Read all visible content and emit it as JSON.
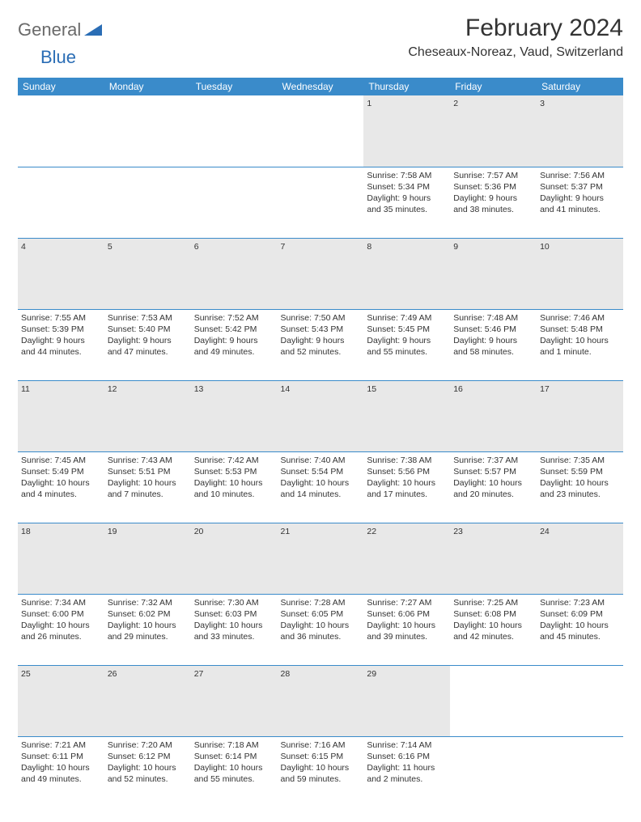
{
  "logo": {
    "text1": "General",
    "text2": "Blue"
  },
  "title": "February 2024",
  "location": "Cheseaux-Noreaz, Vaud, Switzerland",
  "colors": {
    "header_bg": "#3a8bca",
    "header_text": "#ffffff",
    "daynum_bg": "#e8e8e8",
    "border": "#3a8bca",
    "logo_gray": "#6a6a6a",
    "logo_blue": "#2a6db5",
    "text": "#333333",
    "background": "#ffffff"
  },
  "typography": {
    "title_fontsize": 30,
    "location_fontsize": 16,
    "header_fontsize": 12,
    "daynum_fontsize": 11,
    "cell_fontsize": 10.5,
    "font_family": "Arial"
  },
  "weekdays": [
    "Sunday",
    "Monday",
    "Tuesday",
    "Wednesday",
    "Thursday",
    "Friday",
    "Saturday"
  ],
  "weeks": [
    [
      null,
      null,
      null,
      null,
      {
        "day": "1",
        "sunrise": "Sunrise: 7:58 AM",
        "sunset": "Sunset: 5:34 PM",
        "daylight": "Daylight: 9 hours and 35 minutes."
      },
      {
        "day": "2",
        "sunrise": "Sunrise: 7:57 AM",
        "sunset": "Sunset: 5:36 PM",
        "daylight": "Daylight: 9 hours and 38 minutes."
      },
      {
        "day": "3",
        "sunrise": "Sunrise: 7:56 AM",
        "sunset": "Sunset: 5:37 PM",
        "daylight": "Daylight: 9 hours and 41 minutes."
      }
    ],
    [
      {
        "day": "4",
        "sunrise": "Sunrise: 7:55 AM",
        "sunset": "Sunset: 5:39 PM",
        "daylight": "Daylight: 9 hours and 44 minutes."
      },
      {
        "day": "5",
        "sunrise": "Sunrise: 7:53 AM",
        "sunset": "Sunset: 5:40 PM",
        "daylight": "Daylight: 9 hours and 47 minutes."
      },
      {
        "day": "6",
        "sunrise": "Sunrise: 7:52 AM",
        "sunset": "Sunset: 5:42 PM",
        "daylight": "Daylight: 9 hours and 49 minutes."
      },
      {
        "day": "7",
        "sunrise": "Sunrise: 7:50 AM",
        "sunset": "Sunset: 5:43 PM",
        "daylight": "Daylight: 9 hours and 52 minutes."
      },
      {
        "day": "8",
        "sunrise": "Sunrise: 7:49 AM",
        "sunset": "Sunset: 5:45 PM",
        "daylight": "Daylight: 9 hours and 55 minutes."
      },
      {
        "day": "9",
        "sunrise": "Sunrise: 7:48 AM",
        "sunset": "Sunset: 5:46 PM",
        "daylight": "Daylight: 9 hours and 58 minutes."
      },
      {
        "day": "10",
        "sunrise": "Sunrise: 7:46 AM",
        "sunset": "Sunset: 5:48 PM",
        "daylight": "Daylight: 10 hours and 1 minute."
      }
    ],
    [
      {
        "day": "11",
        "sunrise": "Sunrise: 7:45 AM",
        "sunset": "Sunset: 5:49 PM",
        "daylight": "Daylight: 10 hours and 4 minutes."
      },
      {
        "day": "12",
        "sunrise": "Sunrise: 7:43 AM",
        "sunset": "Sunset: 5:51 PM",
        "daylight": "Daylight: 10 hours and 7 minutes."
      },
      {
        "day": "13",
        "sunrise": "Sunrise: 7:42 AM",
        "sunset": "Sunset: 5:53 PM",
        "daylight": "Daylight: 10 hours and 10 minutes."
      },
      {
        "day": "14",
        "sunrise": "Sunrise: 7:40 AM",
        "sunset": "Sunset: 5:54 PM",
        "daylight": "Daylight: 10 hours and 14 minutes."
      },
      {
        "day": "15",
        "sunrise": "Sunrise: 7:38 AM",
        "sunset": "Sunset: 5:56 PM",
        "daylight": "Daylight: 10 hours and 17 minutes."
      },
      {
        "day": "16",
        "sunrise": "Sunrise: 7:37 AM",
        "sunset": "Sunset: 5:57 PM",
        "daylight": "Daylight: 10 hours and 20 minutes."
      },
      {
        "day": "17",
        "sunrise": "Sunrise: 7:35 AM",
        "sunset": "Sunset: 5:59 PM",
        "daylight": "Daylight: 10 hours and 23 minutes."
      }
    ],
    [
      {
        "day": "18",
        "sunrise": "Sunrise: 7:34 AM",
        "sunset": "Sunset: 6:00 PM",
        "daylight": "Daylight: 10 hours and 26 minutes."
      },
      {
        "day": "19",
        "sunrise": "Sunrise: 7:32 AM",
        "sunset": "Sunset: 6:02 PM",
        "daylight": "Daylight: 10 hours and 29 minutes."
      },
      {
        "day": "20",
        "sunrise": "Sunrise: 7:30 AM",
        "sunset": "Sunset: 6:03 PM",
        "daylight": "Daylight: 10 hours and 33 minutes."
      },
      {
        "day": "21",
        "sunrise": "Sunrise: 7:28 AM",
        "sunset": "Sunset: 6:05 PM",
        "daylight": "Daylight: 10 hours and 36 minutes."
      },
      {
        "day": "22",
        "sunrise": "Sunrise: 7:27 AM",
        "sunset": "Sunset: 6:06 PM",
        "daylight": "Daylight: 10 hours and 39 minutes."
      },
      {
        "day": "23",
        "sunrise": "Sunrise: 7:25 AM",
        "sunset": "Sunset: 6:08 PM",
        "daylight": "Daylight: 10 hours and 42 minutes."
      },
      {
        "day": "24",
        "sunrise": "Sunrise: 7:23 AM",
        "sunset": "Sunset: 6:09 PM",
        "daylight": "Daylight: 10 hours and 45 minutes."
      }
    ],
    [
      {
        "day": "25",
        "sunrise": "Sunrise: 7:21 AM",
        "sunset": "Sunset: 6:11 PM",
        "daylight": "Daylight: 10 hours and 49 minutes."
      },
      {
        "day": "26",
        "sunrise": "Sunrise: 7:20 AM",
        "sunset": "Sunset: 6:12 PM",
        "daylight": "Daylight: 10 hours and 52 minutes."
      },
      {
        "day": "27",
        "sunrise": "Sunrise: 7:18 AM",
        "sunset": "Sunset: 6:14 PM",
        "daylight": "Daylight: 10 hours and 55 minutes."
      },
      {
        "day": "28",
        "sunrise": "Sunrise: 7:16 AM",
        "sunset": "Sunset: 6:15 PM",
        "daylight": "Daylight: 10 hours and 59 minutes."
      },
      {
        "day": "29",
        "sunrise": "Sunrise: 7:14 AM",
        "sunset": "Sunset: 6:16 PM",
        "daylight": "Daylight: 11 hours and 2 minutes."
      },
      null,
      null
    ]
  ]
}
